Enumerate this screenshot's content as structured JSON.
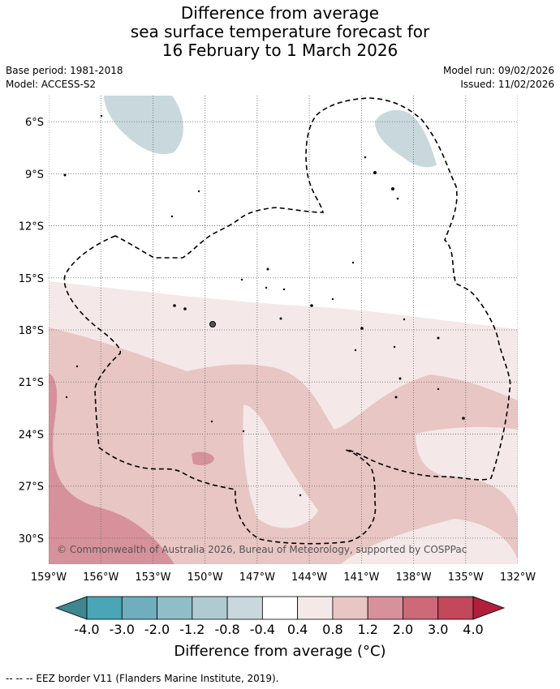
{
  "title": {
    "line1": "Difference from average",
    "line2": "sea surface temperature forecast for",
    "line3": "16 February to 1 March 2026"
  },
  "meta": {
    "base_period": "Base period: 1981-2018",
    "model": "Model: ACCESS-S2",
    "model_run": "Model run: 09/02/2026",
    "issued": "Issued: 11/02/2026"
  },
  "map": {
    "lat_labels": [
      "6°S",
      "9°S",
      "12°S",
      "15°S",
      "18°S",
      "21°S",
      "24°S",
      "27°S",
      "30°S"
    ],
    "lon_labels": [
      "159°W",
      "156°W",
      "153°W",
      "150°W",
      "147°W",
      "144°W",
      "141°W",
      "138°W",
      "135°W",
      "132°W"
    ],
    "lat_values": [
      -6,
      -9,
      -12,
      -15,
      -18,
      -21,
      -24,
      -27,
      -30
    ],
    "lon_values": [
      -159,
      -156,
      -153,
      -150,
      -147,
      -144,
      -141,
      -138,
      -135,
      -132
    ],
    "extent": {
      "lon_min": -159,
      "lon_max": -132,
      "lat_max": -4.5,
      "lat_min": -31.5
    },
    "copyright": "© Commonwealth of Australia 2026, Bureau of Meteorology, supported by COSPPac",
    "fill_colors": {
      "neg_0_8": "#c8d8dd",
      "pos_0_4": "#f4e8e8",
      "pos_0_8": "#e8c6c4",
      "pos_1_2": "#d6919a",
      "coast": "#000000"
    }
  },
  "colorbar": {
    "labels": [
      "-4.0",
      "-3.0",
      "-2.0",
      "-1.2",
      "-0.8",
      "-0.4",
      "0.4",
      "0.8",
      "1.2",
      "2.0",
      "3.0",
      "4.0"
    ],
    "colors": [
      "#3e8791",
      "#4aa6b6",
      "#6faebd",
      "#8fbdc8",
      "#afcbd1",
      "#c8d8dd",
      "#ffffff",
      "#f4e8e8",
      "#e8c6c4",
      "#d6919a",
      "#cd6978",
      "#c2485a",
      "#b21f3c"
    ],
    "title": "Difference from average (°C)"
  },
  "footnote": "-- -- -- EEZ border V11 (Flanders Marine Institute, 2019)."
}
